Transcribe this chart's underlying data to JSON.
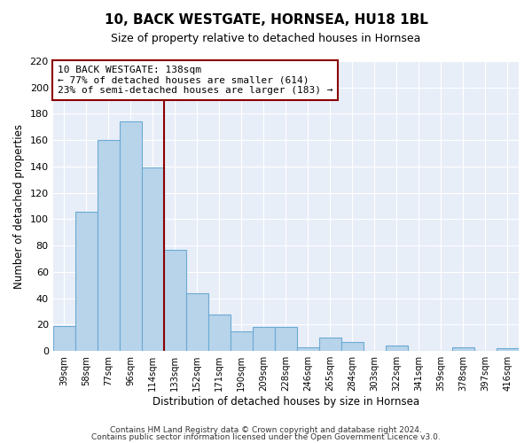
{
  "title": "10, BACK WESTGATE, HORNSEA, HU18 1BL",
  "subtitle": "Size of property relative to detached houses in Hornsea",
  "xlabel": "Distribution of detached houses by size in Hornsea",
  "ylabel": "Number of detached properties",
  "bar_labels": [
    "39sqm",
    "58sqm",
    "77sqm",
    "96sqm",
    "114sqm",
    "133sqm",
    "152sqm",
    "171sqm",
    "190sqm",
    "209sqm",
    "228sqm",
    "246sqm",
    "265sqm",
    "284sqm",
    "303sqm",
    "322sqm",
    "341sqm",
    "359sqm",
    "378sqm",
    "397sqm",
    "416sqm"
  ],
  "bar_values": [
    19,
    106,
    160,
    174,
    139,
    77,
    44,
    28,
    15,
    18,
    18,
    3,
    10,
    7,
    0,
    4,
    0,
    0,
    3,
    0,
    2
  ],
  "bar_color": "#b8d4ea",
  "bar_edge_color": "#6aaad4",
  "ylim": [
    0,
    220
  ],
  "yticks": [
    0,
    20,
    40,
    60,
    80,
    100,
    120,
    140,
    160,
    180,
    200,
    220
  ],
  "marker_label": "10 BACK WESTGATE: 138sqm",
  "annotation_line1": "← 77% of detached houses are smaller (614)",
  "annotation_line2": "23% of semi-detached houses are larger (183) →",
  "marker_color": "#8b0000",
  "footnote1": "Contains HM Land Registry data © Crown copyright and database right 2024.",
  "footnote2": "Contains public sector information licensed under the Open Government Licence v3.0.",
  "bg_color": "#e8eef8"
}
